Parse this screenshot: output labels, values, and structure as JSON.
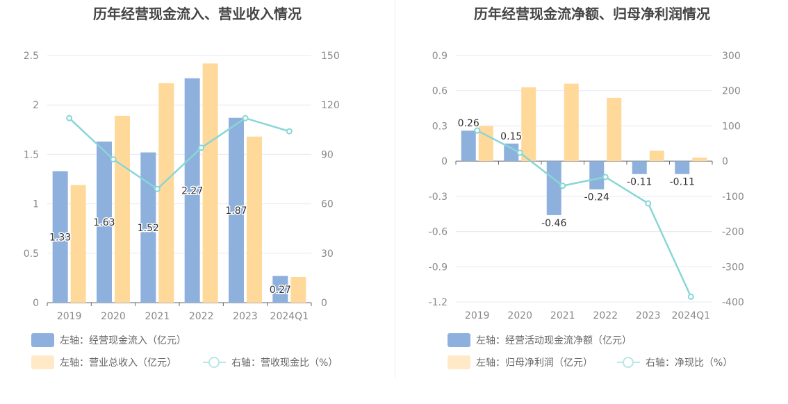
{
  "charts": [
    {
      "title": "历年经营现金流入、营业收入情况",
      "chart_data": {
        "type": "bar",
        "categories": [
          "2019",
          "2020",
          "2021",
          "2022",
          "2023",
          "2024Q1"
        ],
        "left_axis": {
          "min": 0,
          "max": 2.5,
          "ticks": [
            "0",
            "0.5",
            "1",
            "1.5",
            "2",
            "2.5"
          ]
        },
        "right_axis": {
          "min": 0,
          "max": 150,
          "ticks": [
            "0",
            "30",
            "60",
            "90",
            "120",
            "150"
          ]
        },
        "series": [
          {
            "name": "左轴：经营现金流入（亿元）",
            "kind": "bar",
            "axis": "left",
            "color": "#8eb0dc",
            "values": [
              1.33,
              1.63,
              1.52,
              2.27,
              1.87,
              0.27
            ],
            "labels": [
              "1.33",
              "1.63",
              "1.52",
              "2.27",
              "1.87",
              "0.27"
            ]
          },
          {
            "name": "左轴：营业总收入（亿元）",
            "kind": "bar",
            "axis": "left",
            "color": "#ffd99a",
            "values": [
              1.19,
              1.89,
              2.22,
              2.42,
              1.68,
              0.26
            ]
          },
          {
            "name": "右轴：营收现金比（%）",
            "kind": "line",
            "axis": "right",
            "color": "#88d6d6",
            "values": [
              112,
              87,
              69,
              94,
              112,
              104
            ]
          }
        ],
        "grid": true,
        "legend_position": "bottom-left"
      }
    },
    {
      "title": "历年经营现金流净额、归母净利润情况",
      "chart_data": {
        "type": "bar",
        "categories": [
          "2019",
          "2020",
          "2021",
          "2022",
          "2023",
          "2024Q1"
        ],
        "left_axis": {
          "min": -1.2,
          "max": 0.9,
          "ticks": [
            "-1.2",
            "-0.9",
            "-0.6",
            "-0.3",
            "0",
            "0.3",
            "0.6",
            "0.9"
          ]
        },
        "right_axis": {
          "min": -400,
          "max": 300,
          "ticks": [
            "-400",
            "-300",
            "-200",
            "-100",
            "0",
            "100",
            "200",
            "300"
          ]
        },
        "series": [
          {
            "name": "左轴：经营活动现金流净额（亿元）",
            "kind": "bar",
            "axis": "left",
            "color": "#8eb0dc",
            "values": [
              0.26,
              0.15,
              -0.46,
              -0.24,
              -0.11,
              -0.11
            ],
            "labels": [
              "0.26",
              "0.15",
              "-0.46",
              "-0.24",
              "-0.11",
              "-0.11"
            ]
          },
          {
            "name": "左轴：归母净利润（亿元）",
            "kind": "bar",
            "axis": "left",
            "color": "#ffd99a",
            "values": [
              0.3,
              0.63,
              0.66,
              0.54,
              0.09,
              0.03
            ]
          },
          {
            "name": "右轴：净现比（%）",
            "kind": "line",
            "axis": "right",
            "color": "#88d6d6",
            "values": [
              87,
              24,
              -70,
              -45,
              -120,
              -385
            ]
          }
        ],
        "grid": true,
        "legend_position": "bottom-left"
      }
    }
  ]
}
